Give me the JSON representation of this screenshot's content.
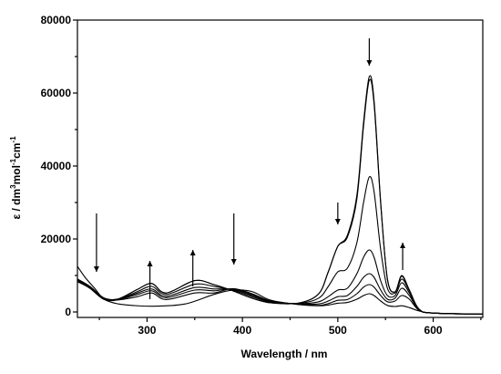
{
  "chart_data": {
    "type": "line",
    "title": "",
    "xlabel": "Wavelength / nm",
    "ylabel": "ε / dm³mol⁻¹cm⁻¹",
    "ylabel_parts": {
      "base": "ε / dm",
      "sup1": "3",
      "mid1": "mol",
      "sup2": "-1",
      "mid2": "cm",
      "sup3": "-1"
    },
    "xlim": [
      227,
      652
    ],
    "ylim": [
      -1500,
      80000
    ],
    "x_ticks": [
      300,
      400,
      500,
      600
    ],
    "y_ticks": [
      0,
      20000,
      40000,
      60000,
      80000
    ],
    "grid": false,
    "legend": "none",
    "series": [
      {
        "points": [
          [
            227,
            9000
          ],
          [
            240,
            7000
          ],
          [
            255,
            3800
          ],
          [
            270,
            3600
          ],
          [
            290,
            6200
          ],
          [
            305,
            7800
          ],
          [
            320,
            5200
          ],
          [
            350,
            8600
          ],
          [
            370,
            7500
          ],
          [
            390,
            5800
          ],
          [
            410,
            3800
          ],
          [
            430,
            2500
          ],
          [
            460,
            2500
          ],
          [
            480,
            5000
          ],
          [
            490,
            11000
          ],
          [
            500,
            18000
          ],
          [
            510,
            21000
          ],
          [
            520,
            32000
          ],
          [
            527,
            52000
          ],
          [
            533,
            64500
          ],
          [
            538,
            58000
          ],
          [
            545,
            30000
          ],
          [
            552,
            9000
          ],
          [
            560,
            5500
          ],
          [
            567,
            10000
          ],
          [
            575,
            6000
          ],
          [
            585,
            800
          ],
          [
            600,
            -300
          ],
          [
            652,
            -600
          ]
        ]
      },
      {
        "points": [
          [
            227,
            9000
          ],
          [
            240,
            7000
          ],
          [
            255,
            3800
          ],
          [
            270,
            3600
          ],
          [
            290,
            6200
          ],
          [
            305,
            7800
          ],
          [
            320,
            5200
          ],
          [
            350,
            8600
          ],
          [
            370,
            7500
          ],
          [
            390,
            5800
          ],
          [
            410,
            3800
          ],
          [
            430,
            2500
          ],
          [
            460,
            2500
          ],
          [
            480,
            5000
          ],
          [
            490,
            11000
          ],
          [
            500,
            18000
          ],
          [
            510,
            20500
          ],
          [
            520,
            31000
          ],
          [
            527,
            51000
          ],
          [
            533,
            63500
          ],
          [
            538,
            57000
          ],
          [
            545,
            29500
          ],
          [
            552,
            9000
          ],
          [
            560,
            5500
          ],
          [
            567,
            9800
          ],
          [
            575,
            6000
          ],
          [
            585,
            800
          ],
          [
            600,
            -300
          ],
          [
            652,
            -600
          ]
        ]
      },
      {
        "points": [
          [
            227,
            8700
          ],
          [
            240,
            6800
          ],
          [
            255,
            3700
          ],
          [
            270,
            3500
          ],
          [
            290,
            5600
          ],
          [
            305,
            7000
          ],
          [
            320,
            4800
          ],
          [
            350,
            7600
          ],
          [
            370,
            7000
          ],
          [
            390,
            6000
          ],
          [
            410,
            4200
          ],
          [
            430,
            2700
          ],
          [
            460,
            2400
          ],
          [
            480,
            3800
          ],
          [
            490,
            7000
          ],
          [
            500,
            11000
          ],
          [
            510,
            12000
          ],
          [
            520,
            19000
          ],
          [
            527,
            30000
          ],
          [
            533,
            37000
          ],
          [
            538,
            33000
          ],
          [
            545,
            17000
          ],
          [
            552,
            6500
          ],
          [
            560,
            5200
          ],
          [
            567,
            9000
          ],
          [
            575,
            5800
          ],
          [
            585,
            800
          ],
          [
            600,
            -300
          ],
          [
            652,
            -600
          ]
        ]
      },
      {
        "points": [
          [
            227,
            8500
          ],
          [
            240,
            6700
          ],
          [
            255,
            3600
          ],
          [
            270,
            3500
          ],
          [
            290,
            5200
          ],
          [
            305,
            6300
          ],
          [
            320,
            4300
          ],
          [
            350,
            6700
          ],
          [
            370,
            6300
          ],
          [
            390,
            6200
          ],
          [
            410,
            4500
          ],
          [
            430,
            2800
          ],
          [
            460,
            2300
          ],
          [
            480,
            2800
          ],
          [
            490,
            4200
          ],
          [
            500,
            6000
          ],
          [
            510,
            6500
          ],
          [
            520,
            10500
          ],
          [
            527,
            15000
          ],
          [
            533,
            17000
          ],
          [
            538,
            15000
          ],
          [
            545,
            8500
          ],
          [
            552,
            4500
          ],
          [
            560,
            4500
          ],
          [
            567,
            8000
          ],
          [
            575,
            5200
          ],
          [
            585,
            700
          ],
          [
            600,
            -300
          ],
          [
            652,
            -600
          ]
        ]
      },
      {
        "points": [
          [
            227,
            8400
          ],
          [
            240,
            6600
          ],
          [
            255,
            3500
          ],
          [
            270,
            3400
          ],
          [
            290,
            4800
          ],
          [
            305,
            5800
          ],
          [
            320,
            3900
          ],
          [
            350,
            6000
          ],
          [
            370,
            5800
          ],
          [
            390,
            6300
          ],
          [
            410,
            4800
          ],
          [
            430,
            2900
          ],
          [
            460,
            2200
          ],
          [
            480,
            2200
          ],
          [
            490,
            3000
          ],
          [
            500,
            4200
          ],
          [
            510,
            4500
          ],
          [
            520,
            7000
          ],
          [
            527,
            9500
          ],
          [
            533,
            10500
          ],
          [
            538,
            9500
          ],
          [
            545,
            6000
          ],
          [
            552,
            3500
          ],
          [
            560,
            3800
          ],
          [
            567,
            6500
          ],
          [
            575,
            4500
          ],
          [
            585,
            600
          ],
          [
            600,
            -300
          ],
          [
            652,
            -600
          ]
        ]
      },
      {
        "points": [
          [
            227,
            8300
          ],
          [
            240,
            6500
          ],
          [
            255,
            3400
          ],
          [
            270,
            3300
          ],
          [
            290,
            4200
          ],
          [
            305,
            5200
          ],
          [
            320,
            3400
          ],
          [
            350,
            5200
          ],
          [
            370,
            5200
          ],
          [
            390,
            6400
          ],
          [
            410,
            5000
          ],
          [
            430,
            3000
          ],
          [
            460,
            2100
          ],
          [
            480,
            1800
          ],
          [
            490,
            2300
          ],
          [
            500,
            3200
          ],
          [
            510,
            3400
          ],
          [
            520,
            5000
          ],
          [
            527,
            6800
          ],
          [
            533,
            7500
          ],
          [
            538,
            6800
          ],
          [
            545,
            4500
          ],
          [
            552,
            2800
          ],
          [
            560,
            3000
          ],
          [
            567,
            4500
          ],
          [
            575,
            3500
          ],
          [
            585,
            500
          ],
          [
            600,
            -300
          ],
          [
            652,
            -600
          ]
        ]
      },
      {
        "points": [
          [
            227,
            12500
          ],
          [
            235,
            9500
          ],
          [
            245,
            6500
          ],
          [
            255,
            3500
          ],
          [
            270,
            2200
          ],
          [
            290,
            1700
          ],
          [
            310,
            1600
          ],
          [
            340,
            2200
          ],
          [
            370,
            4800
          ],
          [
            390,
            6000
          ],
          [
            410,
            5600
          ],
          [
            430,
            3200
          ],
          [
            460,
            2000
          ],
          [
            480,
            1700
          ],
          [
            490,
            1900
          ],
          [
            500,
            2400
          ],
          [
            510,
            2600
          ],
          [
            520,
            3500
          ],
          [
            527,
            4500
          ],
          [
            533,
            5000
          ],
          [
            538,
            4500
          ],
          [
            545,
            3000
          ],
          [
            552,
            1800
          ],
          [
            560,
            1500
          ],
          [
            567,
            1700
          ],
          [
            575,
            1200
          ],
          [
            585,
            300
          ],
          [
            600,
            -300
          ],
          [
            652,
            -600
          ]
        ]
      }
    ],
    "arrows": [
      {
        "x": 247,
        "direction": "down"
      },
      {
        "x": 303,
        "direction": "up"
      },
      {
        "x": 348,
        "direction": "up"
      },
      {
        "x": 391,
        "direction": "down"
      },
      {
        "x": 500,
        "direction": "down"
      },
      {
        "x": 533,
        "direction": "down"
      },
      {
        "x": 568,
        "direction": "up"
      }
    ]
  }
}
